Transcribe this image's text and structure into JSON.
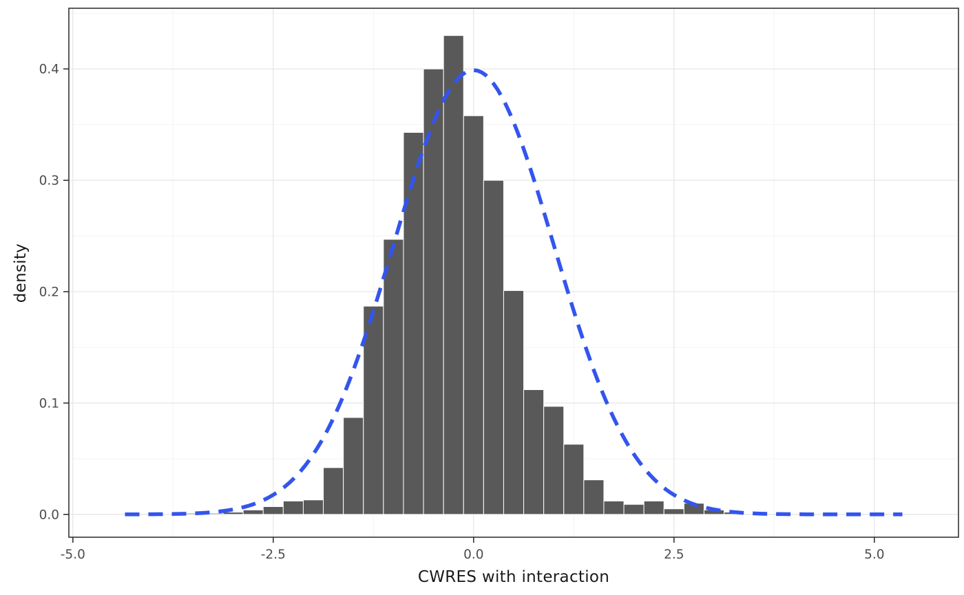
{
  "chart_data": {
    "type": "bar",
    "subtype": "histogram-with-density-overlay",
    "title": "",
    "xlabel": "CWRES with interaction",
    "ylabel": "density",
    "xlim": [
      -5.05,
      6.05
    ],
    "ylim": [
      -0.0205,
      0.4545
    ],
    "grid": true,
    "legend": "none",
    "x_ticks": {
      "values": [
        -5.0,
        -2.5,
        0.0,
        2.5,
        5.0
      ],
      "labels": [
        "-5.0",
        "-2.5",
        "0.0",
        "2.5",
        "5.0"
      ]
    },
    "y_ticks": {
      "values": [
        0.0,
        0.1,
        0.2,
        0.3,
        0.4
      ],
      "labels": [
        "0.0",
        "0.1",
        "0.2",
        "0.3",
        "0.4"
      ]
    },
    "bin_width": 0.25,
    "bars": {
      "centers": [
        -3.5,
        -3.25,
        -3.0,
        -2.75,
        -2.5,
        -2.25,
        -2.0,
        -1.75,
        -1.5,
        -1.25,
        -1.0,
        -0.75,
        -0.5,
        -0.25,
        0.0,
        0.25,
        0.5,
        0.75,
        1.0,
        1.25,
        1.5,
        1.75,
        2.0,
        2.25,
        2.5,
        2.75,
        3.0,
        3.25
      ],
      "densities": [
        0.001,
        0.001,
        0.002,
        0.004,
        0.007,
        0.012,
        0.013,
        0.042,
        0.087,
        0.187,
        0.247,
        0.343,
        0.4,
        0.43,
        0.358,
        0.3,
        0.201,
        0.112,
        0.097,
        0.063,
        0.031,
        0.012,
        0.009,
        0.012,
        0.005,
        0.01,
        0.004,
        0.002
      ]
    },
    "overlay_curve": {
      "name": "normal-density-reference",
      "distribution": "normal",
      "mean": 0,
      "sd": 1,
      "peak_density": 0.399,
      "x_start": -4.35,
      "x_end": 5.35,
      "line_style": "dashed"
    },
    "colors": {
      "bar_fill": "#595959",
      "bar_stroke": "#ffffff",
      "curve": "#3355ee",
      "grid_major": "#e6e6e6",
      "grid_minor": "#f3f3f3",
      "panel_border": "#333333",
      "tick_mark": "#333333",
      "tick_label": "#4d4d4d",
      "axis_title": "#1a1a1a",
      "background": "#ffffff"
    }
  }
}
